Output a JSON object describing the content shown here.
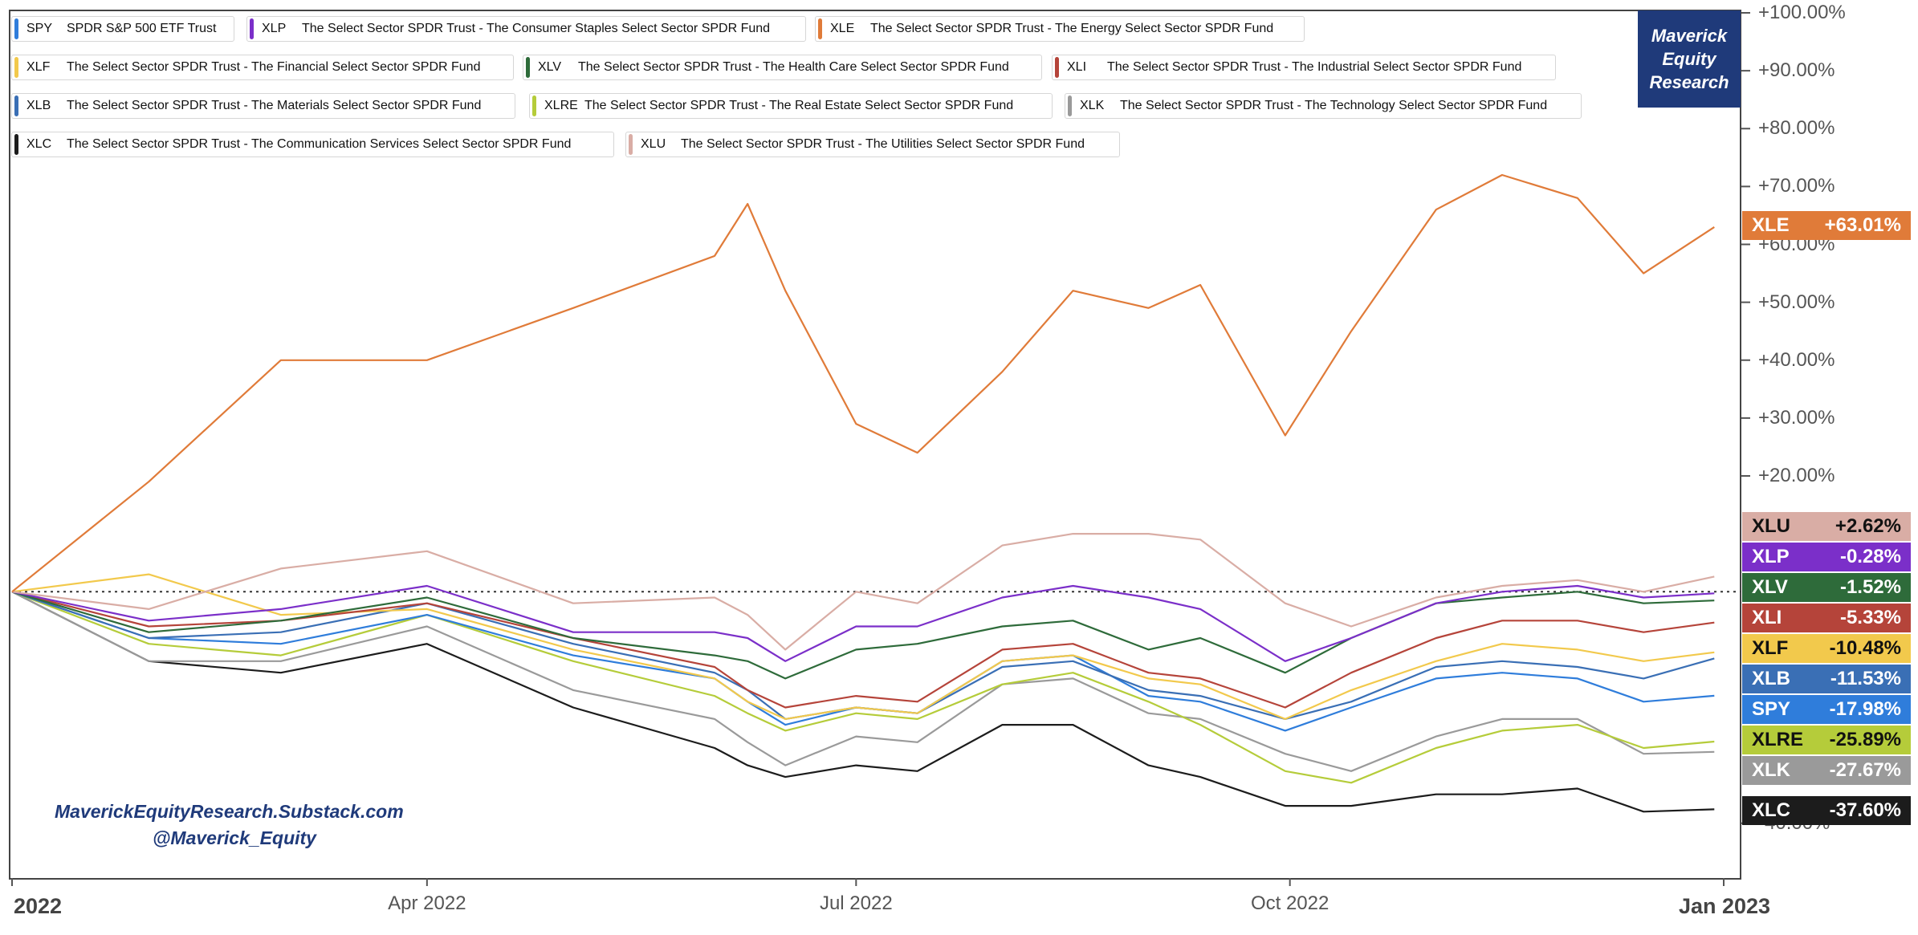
{
  "chart_data": {
    "type": "line",
    "x": [
      "2022-01-03",
      "2022-02-01",
      "2022-03-01",
      "2022-04-01",
      "2022-05-02",
      "2022-06-01",
      "2022-06-08",
      "2022-06-16",
      "2022-07-01",
      "2022-07-14",
      "2022-08-01",
      "2022-08-16",
      "2022-09-01",
      "2022-09-12",
      "2022-09-30",
      "2022-10-14",
      "2022-11-01",
      "2022-11-15",
      "2022-12-01",
      "2022-12-15",
      "2022-12-30"
    ],
    "x_ticks": [
      "2022",
      "Apr 2022",
      "Jul 2022",
      "Oct 2022",
      "Jan 2023"
    ],
    "y_ticks": [
      "+100.00%",
      "+90.00%",
      "+80.00%",
      "+70.00%",
      "+60.00%",
      "+50.00%",
      "+40.00%",
      "+30.00%",
      "+20.00%",
      "-40.00%"
    ],
    "ylim": [
      -45,
      102
    ],
    "baseline": 0,
    "series": [
      {
        "symbol": "XLE",
        "name": "The Select Sector SPDR Trust - The Energy Select Sector SPDR Fund",
        "color": "#e07b39",
        "end_label": "+63.01%",
        "values": [
          0,
          19,
          40,
          40,
          49,
          58,
          67,
          52,
          29,
          24,
          38,
          52,
          49,
          53,
          27,
          45,
          66,
          72,
          68,
          55,
          63
        ]
      },
      {
        "symbol": "XLU",
        "name": "The Select Sector SPDR Trust - The Utilities Select Sector SPDR Fund",
        "color": "#d9ada5",
        "end_label": "+2.62%",
        "values": [
          0,
          -3,
          4,
          7,
          -2,
          -1,
          -4,
          -10,
          0,
          -2,
          8,
          10,
          10,
          9,
          -2,
          -6,
          -1,
          1,
          2,
          0,
          2.62
        ]
      },
      {
        "symbol": "XLP",
        "name": "The Select Sector SPDR Trust - The Consumer Staples Select Sector SPDR Fund",
        "color": "#7b2fc9",
        "end_label": "-0.28%",
        "values": [
          0,
          -5,
          -3,
          1,
          -7,
          -7,
          -8,
          -12,
          -6,
          -6,
          -1,
          1,
          -1,
          -3,
          -12,
          -8,
          -2,
          0,
          1,
          -1,
          -0.28
        ]
      },
      {
        "symbol": "XLV",
        "name": "The Select Sector SPDR Trust - The Health Care Select Sector SPDR Fund",
        "color": "#2e6b3a",
        "end_label": "-1.52%",
        "values": [
          0,
          -7,
          -5,
          -1,
          -8,
          -11,
          -12,
          -15,
          -10,
          -9,
          -6,
          -5,
          -10,
          -8,
          -14,
          -8,
          -2,
          -1,
          0,
          -2,
          -1.52
        ]
      },
      {
        "symbol": "XLI",
        "name": "The Select Sector SPDR Trust - The Industrial Select Sector SPDR Fund",
        "color": "#b5443a",
        "end_label": "-5.33%",
        "values": [
          0,
          -6,
          -5,
          -2,
          -8,
          -13,
          -17,
          -20,
          -18,
          -19,
          -10,
          -9,
          -14,
          -15,
          -20,
          -14,
          -8,
          -5,
          -5,
          -7,
          -5.33
        ]
      },
      {
        "symbol": "XLF",
        "name": "The Select Sector SPDR Trust - The Financial Select Sector SPDR Fund",
        "color": "#f2c94c",
        "end_label": "-10.48%",
        "values": [
          0,
          3,
          -4,
          -3,
          -10,
          -15,
          -19,
          -22,
          -20,
          -21,
          -12,
          -11,
          -15,
          -16,
          -22,
          -17,
          -12,
          -9,
          -10,
          -12,
          -10.48
        ]
      },
      {
        "symbol": "XLB",
        "name": "The Select Sector SPDR Trust - The Materials Select Sector SPDR Fund",
        "color": "#3a6fb5",
        "end_label": "-11.53%",
        "values": [
          0,
          -8,
          -7,
          -2,
          -9,
          -14,
          -17,
          -22,
          -20,
          -21,
          -13,
          -12,
          -17,
          -18,
          -22,
          -19,
          -13,
          -12,
          -13,
          -15,
          -11.53
        ]
      },
      {
        "symbol": "SPY",
        "name": "SPDR S&P 500 ETF Trust",
        "color": "#2f7ddb",
        "end_label": "-17.98%",
        "values": [
          0,
          -8,
          -9,
          -4,
          -11,
          -15,
          -19,
          -23,
          -20,
          -21,
          -12,
          -11,
          -18,
          -19,
          -24,
          -20,
          -15,
          -14,
          -15,
          -19,
          -17.98
        ]
      },
      {
        "symbol": "XLRE",
        "name": "The Select Sector SPDR Trust - The Real Estate Select Sector SPDR Fund",
        "color": "#b5cc3a",
        "end_label": "-25.89%",
        "values": [
          0,
          -9,
          -11,
          -4,
          -12,
          -18,
          -21,
          -24,
          -21,
          -22,
          -16,
          -14,
          -19,
          -23,
          -31,
          -33,
          -27,
          -24,
          -23,
          -27,
          -25.89
        ]
      },
      {
        "symbol": "XLK",
        "name": "The Select Sector SPDR Trust - The Technology Select Sector SPDR Fund",
        "color": "#9a9a9a",
        "end_label": "-27.67%",
        "values": [
          0,
          -12,
          -12,
          -6,
          -17,
          -22,
          -26,
          -30,
          -25,
          -26,
          -16,
          -15,
          -21,
          -22,
          -28,
          -31,
          -25,
          -22,
          -22,
          -28,
          -27.67
        ]
      },
      {
        "symbol": "XLC",
        "name": "The Select Sector SPDR Trust - The Communication Services Select Sector SPDR Fund",
        "color": "#1c1c1c",
        "end_label": "-37.60%",
        "values": [
          0,
          -12,
          -14,
          -9,
          -20,
          -27,
          -30,
          -32,
          -30,
          -31,
          -23,
          -23,
          -30,
          -32,
          -37,
          -37,
          -35,
          -35,
          -34,
          -38,
          -37.6
        ]
      }
    ],
    "legend_order": [
      "SPY",
      "XLP",
      "XLE",
      "XLF",
      "XLV",
      "XLI",
      "XLB",
      "XLRE",
      "XLK",
      "XLC",
      "XLU"
    ],
    "legend_placement": "top-left",
    "grid": false
  },
  "brand": {
    "line1": "Maverick",
    "line2": "Equity",
    "line3": "Research"
  },
  "watermark": {
    "line1": "MaverickEquityResearch.Substack.com",
    "line2": "@Maverick_Equity"
  }
}
